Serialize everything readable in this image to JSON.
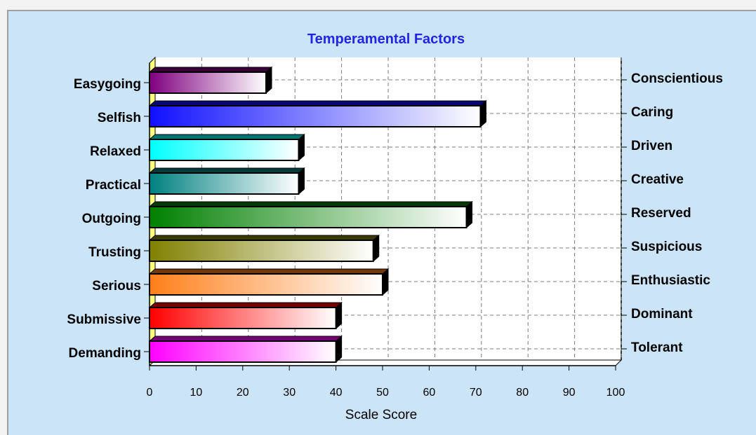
{
  "chart_data": {
    "type": "bar",
    "orientation": "horizontal",
    "title": "Temperamental Factors",
    "xlabel": "Scale Score",
    "xlim": [
      0,
      100
    ],
    "xticks": [
      0,
      10,
      20,
      30,
      40,
      50,
      60,
      70,
      80,
      90,
      100
    ],
    "grid": true,
    "categories_left": [
      "Easygoing",
      "Selfish",
      "Relaxed",
      "Practical",
      "Outgoing",
      "Trusting",
      "Serious",
      "Submissive",
      "Demanding"
    ],
    "categories_right": [
      "Conscientious",
      "Caring",
      "Driven",
      "Creative",
      "Reserved",
      "Suspicious",
      "Enthusiastic",
      "Dominant",
      "Tolerant"
    ],
    "values": [
      25,
      71,
      32,
      32,
      68,
      48,
      50,
      40,
      40
    ],
    "bar_colors": [
      "#800080",
      "#1010ff",
      "#00ffff",
      "#008080",
      "#008000",
      "#808000",
      "#ff7f1a",
      "#ff0000",
      "#ff00ff"
    ]
  }
}
